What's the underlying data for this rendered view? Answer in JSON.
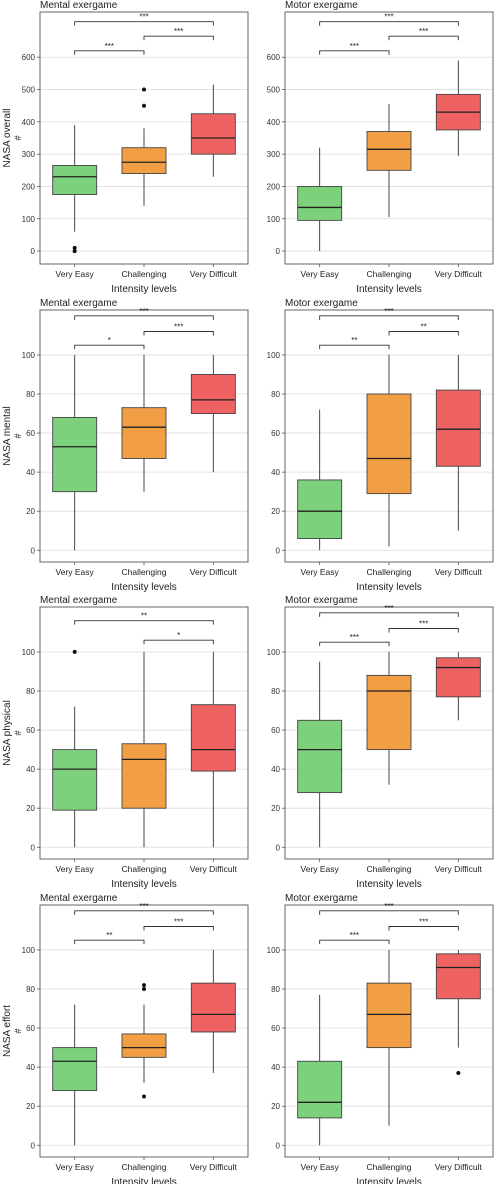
{
  "chart_data": [
    {
      "type": "box",
      "title": "Mental exergame",
      "xlabel": "Intensity levels",
      "ylabel": "NASA overall",
      "ylabel2": "#",
      "categories": [
        "Very Easy",
        "Challenging",
        "Very Difficult"
      ],
      "ylim": [
        -40,
        740
      ],
      "yticks": [
        0,
        100,
        200,
        300,
        400,
        500,
        600
      ],
      "grid": true,
      "boxes": [
        {
          "min": 60,
          "q1": 175,
          "median": 230,
          "q3": 265,
          "max": 390,
          "outliers": [
            0,
            10
          ],
          "color": "#7dd17d"
        },
        {
          "min": 140,
          "q1": 240,
          "median": 275,
          "q3": 320,
          "max": 380,
          "outliers": [
            450,
            500
          ],
          "color": "#f29e45"
        },
        {
          "min": 230,
          "q1": 300,
          "median": 350,
          "q3": 425,
          "max": 515,
          "outliers": [],
          "color": "#ef6262"
        }
      ],
      "significance": [
        {
          "from": 0,
          "to": 1,
          "label": "***",
          "y": 620
        },
        {
          "from": 1,
          "to": 2,
          "label": "***",
          "y": 665
        },
        {
          "from": 0,
          "to": 2,
          "label": "***",
          "y": 710
        }
      ]
    },
    {
      "type": "box",
      "title": "Motor exergame",
      "xlabel": "Intensity levels",
      "ylabel": "",
      "ylabel2": "",
      "categories": [
        "Very Easy",
        "Challenging",
        "Very Difficult"
      ],
      "ylim": [
        -40,
        740
      ],
      "yticks": [
        0,
        100,
        200,
        300,
        400,
        500,
        600
      ],
      "grid": true,
      "boxes": [
        {
          "min": 0,
          "q1": 95,
          "median": 135,
          "q3": 200,
          "max": 320,
          "outliers": [],
          "color": "#7dd17d"
        },
        {
          "min": 105,
          "q1": 250,
          "median": 315,
          "q3": 370,
          "max": 455,
          "outliers": [],
          "color": "#f29e45"
        },
        {
          "min": 295,
          "q1": 375,
          "median": 430,
          "q3": 485,
          "max": 590,
          "outliers": [],
          "color": "#ef6262"
        }
      ],
      "significance": [
        {
          "from": 0,
          "to": 1,
          "label": "***",
          "y": 620
        },
        {
          "from": 1,
          "to": 2,
          "label": "***",
          "y": 665
        },
        {
          "from": 0,
          "to": 2,
          "label": "***",
          "y": 710
        }
      ]
    },
    {
      "type": "box",
      "title": "Mental exergame",
      "xlabel": "Intensity levels",
      "ylabel": "NASA mental",
      "ylabel2": "#",
      "categories": [
        "Very Easy",
        "Challenging",
        "Very Difficult"
      ],
      "ylim": [
        -6,
        123
      ],
      "yticks": [
        0,
        20,
        40,
        60,
        80,
        100
      ],
      "grid": true,
      "boxes": [
        {
          "min": 0,
          "q1": 30,
          "median": 53,
          "q3": 68,
          "max": 100,
          "outliers": [],
          "color": "#7dd17d"
        },
        {
          "min": 30,
          "q1": 47,
          "median": 63,
          "q3": 73,
          "max": 100,
          "outliers": [],
          "color": "#f29e45"
        },
        {
          "min": 40,
          "q1": 70,
          "median": 77,
          "q3": 90,
          "max": 100,
          "outliers": [],
          "color": "#ef6262"
        }
      ],
      "significance": [
        {
          "from": 0,
          "to": 1,
          "label": "*",
          "y": 105
        },
        {
          "from": 1,
          "to": 2,
          "label": "***",
          "y": 112
        },
        {
          "from": 0,
          "to": 2,
          "label": "***",
          "y": 120
        }
      ]
    },
    {
      "type": "box",
      "title": "Motor exergame",
      "xlabel": "Intensity levels",
      "ylabel": "",
      "ylabel2": "",
      "categories": [
        "Very Easy",
        "Challenging",
        "Very Difficult"
      ],
      "ylim": [
        -6,
        123
      ],
      "yticks": [
        0,
        20,
        40,
        60,
        80,
        100
      ],
      "grid": true,
      "boxes": [
        {
          "min": 0,
          "q1": 6,
          "median": 20,
          "q3": 36,
          "max": 72,
          "outliers": [],
          "color": "#7dd17d"
        },
        {
          "min": 2,
          "q1": 29,
          "median": 47,
          "q3": 80,
          "max": 100,
          "outliers": [],
          "color": "#f29e45"
        },
        {
          "min": 10,
          "q1": 43,
          "median": 62,
          "q3": 82,
          "max": 100,
          "outliers": [],
          "color": "#ef6262"
        }
      ],
      "significance": [
        {
          "from": 0,
          "to": 1,
          "label": "**",
          "y": 105
        },
        {
          "from": 1,
          "to": 2,
          "label": "**",
          "y": 112
        },
        {
          "from": 0,
          "to": 2,
          "label": "***",
          "y": 120
        }
      ]
    },
    {
      "type": "box",
      "title": "Mental exergame",
      "xlabel": "Intensity levels",
      "ylabel": "NASA physical",
      "ylabel2": "#",
      "categories": [
        "Very Easy",
        "Challenging",
        "Very Difficult"
      ],
      "ylim": [
        -6,
        123
      ],
      "yticks": [
        0,
        20,
        40,
        60,
        80,
        100
      ],
      "grid": true,
      "boxes": [
        {
          "min": 0,
          "q1": 19,
          "median": 40,
          "q3": 50,
          "max": 72,
          "outliers": [
            100
          ],
          "color": "#7dd17d"
        },
        {
          "min": 0,
          "q1": 20,
          "median": 45,
          "q3": 53,
          "max": 100,
          "outliers": [],
          "color": "#f29e45"
        },
        {
          "min": 0,
          "q1": 39,
          "median": 50,
          "q3": 73,
          "max": 100,
          "outliers": [],
          "color": "#ef6262"
        }
      ],
      "significance": [
        {
          "from": 1,
          "to": 2,
          "label": "*",
          "y": 106
        },
        {
          "from": 0,
          "to": 2,
          "label": "**",
          "y": 116
        }
      ]
    },
    {
      "type": "box",
      "title": "Motor exergame",
      "xlabel": "Intensity levels",
      "ylabel": "",
      "ylabel2": "",
      "categories": [
        "Very Easy",
        "Challenging",
        "Very Difficult"
      ],
      "ylim": [
        -6,
        123
      ],
      "yticks": [
        0,
        20,
        40,
        60,
        80,
        100
      ],
      "grid": true,
      "boxes": [
        {
          "min": 0,
          "q1": 28,
          "median": 50,
          "q3": 65,
          "max": 95,
          "outliers": [],
          "color": "#7dd17d"
        },
        {
          "min": 32,
          "q1": 50,
          "median": 80,
          "q3": 88,
          "max": 100,
          "outliers": [],
          "color": "#f29e45"
        },
        {
          "min": 65,
          "q1": 77,
          "median": 92,
          "q3": 97,
          "max": 100,
          "outliers": [],
          "color": "#ef6262"
        }
      ],
      "significance": [
        {
          "from": 0,
          "to": 1,
          "label": "***",
          "y": 105
        },
        {
          "from": 1,
          "to": 2,
          "label": "***",
          "y": 112
        },
        {
          "from": 0,
          "to": 2,
          "label": "***",
          "y": 120
        }
      ]
    },
    {
      "type": "box",
      "title": "Mental exergame",
      "xlabel": "Intensity levels",
      "ylabel": "NASA effort",
      "ylabel2": "#",
      "categories": [
        "Very Easy",
        "Challenging",
        "Very Difficult"
      ],
      "ylim": [
        -6,
        123
      ],
      "yticks": [
        0,
        20,
        40,
        60,
        80,
        100
      ],
      "grid": true,
      "boxes": [
        {
          "min": 0,
          "q1": 28,
          "median": 43,
          "q3": 50,
          "max": 72,
          "outliers": [],
          "color": "#7dd17d"
        },
        {
          "min": 32,
          "q1": 45,
          "median": 50,
          "q3": 57,
          "max": 72,
          "outliers": [
            25,
            80,
            82
          ],
          "color": "#f29e45"
        },
        {
          "min": 37,
          "q1": 58,
          "median": 67,
          "q3": 83,
          "max": 100,
          "outliers": [],
          "color": "#ef6262"
        }
      ],
      "significance": [
        {
          "from": 0,
          "to": 1,
          "label": "**",
          "y": 105
        },
        {
          "from": 1,
          "to": 2,
          "label": "***",
          "y": 112
        },
        {
          "from": 0,
          "to": 2,
          "label": "***",
          "y": 120
        }
      ]
    },
    {
      "type": "box",
      "title": "Motor exergame",
      "xlabel": "Intensity levels",
      "ylabel": "",
      "ylabel2": "",
      "categories": [
        "Very Easy",
        "Challenging",
        "Very Difficult"
      ],
      "ylim": [
        -6,
        123
      ],
      "yticks": [
        0,
        20,
        40,
        60,
        80,
        100
      ],
      "grid": true,
      "boxes": [
        {
          "min": 0,
          "q1": 14,
          "median": 22,
          "q3": 43,
          "max": 77,
          "outliers": [],
          "color": "#7dd17d"
        },
        {
          "min": 10,
          "q1": 50,
          "median": 67,
          "q3": 83,
          "max": 100,
          "outliers": [],
          "color": "#f29e45"
        },
        {
          "min": 50,
          "q1": 75,
          "median": 91,
          "q3": 98,
          "max": 100,
          "outliers": [
            37
          ],
          "color": "#ef6262"
        }
      ],
      "significance": [
        {
          "from": 0,
          "to": 1,
          "label": "***",
          "y": 105
        },
        {
          "from": 1,
          "to": 2,
          "label": "***",
          "y": 112
        },
        {
          "from": 0,
          "to": 2,
          "label": "***",
          "y": 120
        }
      ]
    }
  ]
}
